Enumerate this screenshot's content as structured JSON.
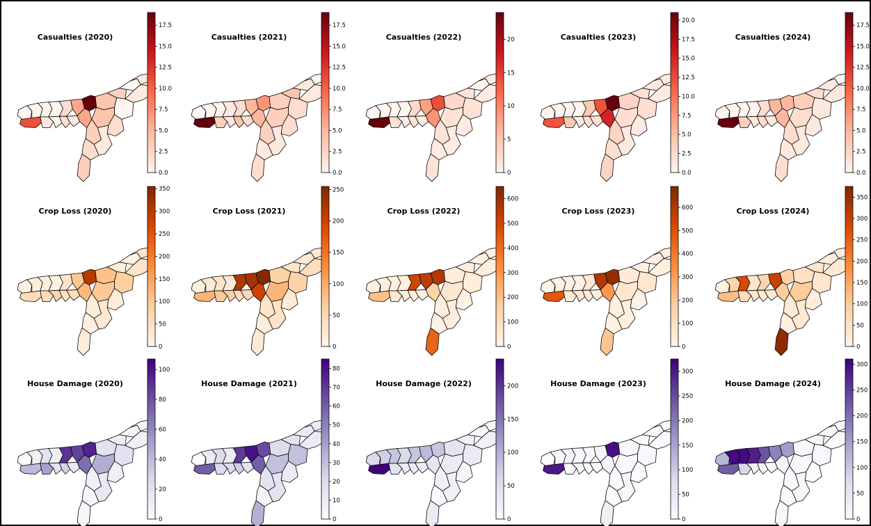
{
  "colormaps": {
    "Reds": [
      "#fff5f0",
      "#fcbba1",
      "#fb6a4a",
      "#cb181d",
      "#67000d"
    ],
    "Oranges": [
      "#fff5eb",
      "#fdd0a2",
      "#fd8d3c",
      "#d94801",
      "#7f2704"
    ],
    "Purples": [
      "#fcfbfd",
      "#dadaeb",
      "#9e9ac8",
      "#6a51a3",
      "#3f007d"
    ]
  },
  "chart_data": [
    {
      "type": "choropleth",
      "title": "Casualties (2020)",
      "cmap": "Reds",
      "range": [
        0,
        19
      ],
      "ticks": [
        "0.0",
        "2.5",
        "5.0",
        "7.5",
        "10.0",
        "12.5",
        "15.0",
        "17.5"
      ],
      "tick_values": [
        0,
        2.5,
        5,
        7.5,
        10,
        12.5,
        15,
        17.5
      ],
      "values": {
        "d1": 0,
        "d2": 0,
        "d3": 0,
        "d4": 0,
        "d5": 11,
        "d6": 2,
        "d7": 6,
        "d8": 19,
        "d9": 1,
        "d10": 0,
        "d11": 2,
        "d12": 1,
        "d13": 6,
        "d14": 4,
        "d15": 3,
        "d16": 0,
        "d17": 1,
        "d18": 1,
        "d19": 0,
        "d20": 4,
        "d21": 2,
        "d22": 3,
        "d23": 2,
        "d24": 1,
        "d25": 3
      }
    },
    {
      "type": "choropleth",
      "title": "Casualties (2021)",
      "cmap": "Reds",
      "range": [
        0,
        19
      ],
      "ticks": [
        "0.0",
        "2.5",
        "5.0",
        "7.5",
        "10.0",
        "12.5",
        "15.0",
        "17.5"
      ],
      "tick_values": [
        0,
        2.5,
        5,
        7.5,
        10,
        12.5,
        15,
        17.5
      ],
      "values": {
        "d1": 0,
        "d2": 0,
        "d3": 0,
        "d4": 1,
        "d5": 19,
        "d6": 2,
        "d7": 5,
        "d8": 7,
        "d9": 3,
        "d10": 1,
        "d11": 4,
        "d12": 2,
        "d13": 5,
        "d14": 3,
        "d15": 4,
        "d16": 1,
        "d17": 0,
        "d18": 1,
        "d19": 2,
        "d20": 3,
        "d21": 2,
        "d22": 3,
        "d23": 1,
        "d24": 1,
        "d25": 2
      }
    },
    {
      "type": "choropleth",
      "title": "Casualties (2022)",
      "cmap": "Reds",
      "range": [
        0,
        24
      ],
      "ticks": [
        "0",
        "5",
        "10",
        "15",
        "20"
      ],
      "tick_values": [
        0,
        5,
        10,
        15,
        20
      ],
      "values": {
        "d1": 0,
        "d2": 0,
        "d3": 0,
        "d4": 0,
        "d5": 24,
        "d6": 3,
        "d7": 8,
        "d8": 14,
        "d9": 2,
        "d10": 1,
        "d11": 2,
        "d12": 1,
        "d13": 9,
        "d14": 3,
        "d15": 2,
        "d16": 0,
        "d17": 1,
        "d18": 1,
        "d19": 2,
        "d20": 2,
        "d21": 1,
        "d22": 2,
        "d23": 1,
        "d24": 1,
        "d25": 2
      }
    },
    {
      "type": "choropleth",
      "title": "Casualties (2023)",
      "cmap": "Reds",
      "range": [
        0,
        21
      ],
      "ticks": [
        "0.0",
        "2.5",
        "5.0",
        "7.5",
        "10.0",
        "12.5",
        "15.0",
        "17.5",
        "20.0"
      ],
      "tick_values": [
        0,
        2.5,
        5,
        7.5,
        10,
        12.5,
        15,
        17.5,
        20
      ],
      "values": {
        "d1": 0,
        "d2": 0,
        "d3": 0,
        "d4": 0,
        "d5": 12,
        "d6": 4,
        "d7": 12,
        "d8": 21,
        "d9": 4,
        "d10": 1,
        "d11": 2,
        "d12": 2,
        "d13": 15,
        "d14": 3,
        "d15": 2,
        "d16": 1,
        "d17": 1,
        "d18": 1,
        "d19": 2,
        "d20": 2,
        "d21": 1,
        "d22": 3,
        "d23": 2,
        "d24": 1,
        "d25": 3
      }
    },
    {
      "type": "choropleth",
      "title": "Casualties (2024)",
      "cmap": "Reds",
      "range": [
        0,
        19
      ],
      "ticks": [
        "0.0",
        "2.5",
        "5.0",
        "7.5",
        "10.0",
        "12.5",
        "15.0",
        "17.5"
      ],
      "tick_values": [
        0,
        2.5,
        5,
        7.5,
        10,
        12.5,
        15,
        17.5
      ],
      "values": {
        "d1": 0,
        "d2": 0,
        "d3": 0,
        "d4": 0,
        "d5": 19,
        "d6": 2,
        "d7": 5,
        "d8": 5,
        "d9": 3,
        "d10": 1,
        "d11": 2,
        "d12": 1,
        "d13": 5,
        "d14": 3,
        "d15": 2,
        "d16": 1,
        "d17": 0,
        "d18": 1,
        "d19": 1,
        "d20": 2,
        "d21": 1,
        "d22": 2,
        "d23": 1,
        "d24": 1,
        "d25": 2
      }
    },
    {
      "type": "choropleth",
      "title": "Crop Loss (2020)",
      "cmap": "Oranges",
      "range": [
        0,
        355
      ],
      "ticks": [
        "0",
        "50",
        "100",
        "150",
        "200",
        "250",
        "300",
        "350"
      ],
      "tick_values": [
        0,
        50,
        100,
        150,
        200,
        250,
        300,
        350
      ],
      "values": {
        "d1": 10,
        "d2": 20,
        "d3": 15,
        "d4": 10,
        "d5": 60,
        "d6": 40,
        "d7": 100,
        "d8": 300,
        "d9": 60,
        "d10": 80,
        "d11": 50,
        "d12": 60,
        "d13": 120,
        "d14": 110,
        "d15": 20,
        "d16": 10,
        "d17": 30,
        "d18": 40,
        "d19": 90,
        "d20": 100,
        "d21": 20,
        "d22": 20,
        "d23": 15,
        "d24": 30,
        "d25": 20
      }
    },
    {
      "type": "choropleth",
      "title": "Crop Loss (2021)",
      "cmap": "Oranges",
      "range": [
        0,
        255
      ],
      "ticks": [
        "0",
        "50",
        "100",
        "150",
        "200",
        "250"
      ],
      "tick_values": [
        0,
        50,
        100,
        150,
        200,
        250
      ],
      "values": {
        "d1": 10,
        "d2": 20,
        "d3": 30,
        "d4": 20,
        "d5": 90,
        "d6": 220,
        "d7": 230,
        "d8": 250,
        "d9": 70,
        "d10": 60,
        "d11": 40,
        "d12": 50,
        "d13": 200,
        "d14": 60,
        "d15": 30,
        "d16": 20,
        "d17": 20,
        "d18": 40,
        "d19": 60,
        "d20": 90,
        "d21": 20,
        "d22": 30,
        "d23": 15,
        "d24": 30,
        "d25": 20
      }
    },
    {
      "type": "choropleth",
      "title": "Crop Loss (2022)",
      "cmap": "Oranges",
      "range": [
        0,
        650
      ],
      "ticks": [
        "0",
        "100",
        "200",
        "300",
        "400",
        "500",
        "600"
      ],
      "tick_values": [
        0,
        100,
        200,
        300,
        400,
        500,
        600
      ],
      "values": {
        "d1": 20,
        "d2": 30,
        "d3": 20,
        "d4": 30,
        "d5": 200,
        "d6": 500,
        "d7": 540,
        "d8": 560,
        "d9": 60,
        "d10": 50,
        "d11": 40,
        "d12": 30,
        "d13": 150,
        "d14": 40,
        "d15": 30,
        "d16": 20,
        "d17": 20,
        "d18": 30,
        "d19": 40,
        "d20": 60,
        "d21": 20,
        "d22": 30,
        "d23": 15,
        "d24": 30,
        "d25": 420
      }
    },
    {
      "type": "choropleth",
      "title": "Crop Loss (2023)",
      "cmap": "Oranges",
      "range": [
        0,
        690
      ],
      "ticks": [
        "0",
        "100",
        "200",
        "300",
        "400",
        "500",
        "600"
      ],
      "tick_values": [
        0,
        100,
        200,
        300,
        400,
        500,
        600
      ],
      "values": {
        "d1": 10,
        "d2": 20,
        "d3": 20,
        "d4": 20,
        "d5": 480,
        "d6": 60,
        "d7": 600,
        "d8": 650,
        "d9": 50,
        "d10": 60,
        "d11": 40,
        "d12": 30,
        "d13": 320,
        "d14": 50,
        "d15": 30,
        "d16": 20,
        "d17": 20,
        "d18": 30,
        "d19": 60,
        "d20": 70,
        "d21": 20,
        "d22": 30,
        "d23": 15,
        "d24": 30,
        "d25": 200
      }
    },
    {
      "type": "choropleth",
      "title": "Crop Loss (2024)",
      "cmap": "Oranges",
      "range": [
        0,
        375
      ],
      "ticks": [
        "0",
        "50",
        "100",
        "150",
        "200",
        "250",
        "300",
        "350"
      ],
      "tick_values": [
        0,
        50,
        100,
        150,
        200,
        250,
        300,
        350
      ],
      "values": {
        "d1": 10,
        "d2": 80,
        "d3": 280,
        "d4": 40,
        "d5": 120,
        "d6": 80,
        "d7": 300,
        "d8": 90,
        "d9": 60,
        "d10": 40,
        "d11": 30,
        "d12": 30,
        "d13": 100,
        "d14": 50,
        "d15": 40,
        "d16": 20,
        "d17": 20,
        "d18": 30,
        "d19": 40,
        "d20": 100,
        "d21": 20,
        "d22": 30,
        "d23": 15,
        "d24": 30,
        "d25": 360
      }
    },
    {
      "type": "choropleth",
      "title": "House Damage (2020)",
      "cmap": "Purples",
      "range": [
        0,
        107
      ],
      "ticks": [
        "0",
        "20",
        "40",
        "60",
        "80",
        "100"
      ],
      "tick_values": [
        0,
        20,
        40,
        60,
        80,
        100
      ],
      "values": {
        "d1": 0,
        "d2": 10,
        "d3": 20,
        "d4": 10,
        "d5": 40,
        "d6": 90,
        "d7": 85,
        "d8": 95,
        "d9": 50,
        "d10": 20,
        "d11": 30,
        "d12": 15,
        "d13": 70,
        "d14": 20,
        "d15": 10,
        "d16": 5,
        "d17": 5,
        "d18": 10,
        "d19": 20,
        "d20": 45,
        "d21": 10,
        "d22": 10,
        "d23": 5,
        "d24": 15,
        "d25": 5
      }
    },
    {
      "type": "choropleth",
      "title": "House Damage (2021)",
      "cmap": "Purples",
      "range": [
        0,
        85
      ],
      "ticks": [
        "0",
        "10",
        "20",
        "30",
        "40",
        "50",
        "60",
        "70",
        "80"
      ],
      "tick_values": [
        0,
        10,
        20,
        30,
        40,
        50,
        60,
        70,
        80
      ],
      "values": {
        "d1": 0,
        "d2": 10,
        "d3": 20,
        "d4": 10,
        "d5": 60,
        "d6": 70,
        "d7": 80,
        "d8": 65,
        "d9": 20,
        "d10": 20,
        "d11": 25,
        "d12": 15,
        "d13": 60,
        "d14": 20,
        "d15": 15,
        "d16": 10,
        "d17": 10,
        "d18": 10,
        "d19": 30,
        "d20": 30,
        "d21": 10,
        "d22": 15,
        "d23": 5,
        "d24": 15,
        "d25": 35
      }
    },
    {
      "type": "choropleth",
      "title": "House Damage (2022)",
      "cmap": "Purples",
      "range": [
        0,
        240
      ],
      "ticks": [
        "0",
        "50",
        "100",
        "150",
        "200"
      ],
      "tick_values": [
        0,
        50,
        100,
        150,
        200
      ],
      "values": {
        "d1": 60,
        "d2": 70,
        "d3": 80,
        "d4": 60,
        "d5": 240,
        "d6": 80,
        "d7": 90,
        "d8": 80,
        "d9": 40,
        "d10": 30,
        "d11": 30,
        "d12": 30,
        "d13": 40,
        "d14": 40,
        "d15": 20,
        "d16": 10,
        "d17": 10,
        "d18": 20,
        "d19": 30,
        "d20": 30,
        "d21": 10,
        "d22": 20,
        "d23": 5,
        "d24": 20,
        "d25": 30
      }
    },
    {
      "type": "choropleth",
      "title": "House Damage (2023)",
      "cmap": "Purples",
      "range": [
        0,
        325
      ],
      "ticks": [
        "0",
        "50",
        "100",
        "150",
        "200",
        "250",
        "300"
      ],
      "tick_values": [
        0,
        50,
        100,
        150,
        200,
        250,
        300
      ],
      "values": {
        "d1": 0,
        "d2": 10,
        "d3": 20,
        "d4": 10,
        "d5": 300,
        "d6": 10,
        "d7": 20,
        "d8": 310,
        "d9": 10,
        "d10": 10,
        "d11": 10,
        "d12": 5,
        "d13": 20,
        "d14": 10,
        "d15": 5,
        "d16": 5,
        "d17": 5,
        "d18": 5,
        "d19": 10,
        "d20": 10,
        "d21": 5,
        "d22": 5,
        "d23": 5,
        "d24": 10,
        "d25": 30
      }
    },
    {
      "type": "choropleth",
      "title": "House Damage (2024)",
      "cmap": "Purples",
      "range": [
        0,
        310
      ],
      "ticks": [
        "0",
        "50",
        "100",
        "150",
        "200",
        "250",
        "300"
      ],
      "tick_values": [
        0,
        50,
        100,
        150,
        200,
        250,
        300
      ],
      "values": {
        "d1": 120,
        "d2": 300,
        "d3": 300,
        "d4": 280,
        "d5": 220,
        "d6": 230,
        "d7": 180,
        "d8": 150,
        "d9": 80,
        "d10": 20,
        "d11": 10,
        "d12": 10,
        "d13": 20,
        "d14": 10,
        "d15": 10,
        "d16": 5,
        "d17": 5,
        "d18": 5,
        "d19": 10,
        "d20": 10,
        "d21": 5,
        "d22": 5,
        "d23": 5,
        "d24": 10,
        "d25": 10
      }
    }
  ]
}
